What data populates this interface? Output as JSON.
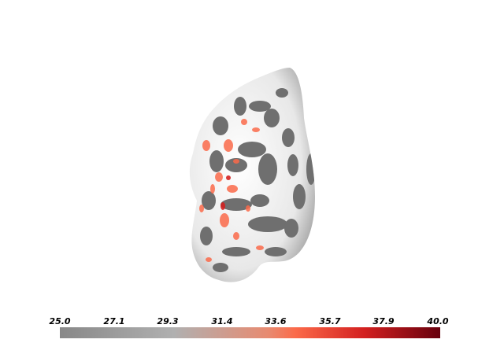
{
  "colorbar": {
    "ticks": [
      "25.0",
      "27.1",
      "29.3",
      "31.4",
      "33.6",
      "35.7",
      "37.9",
      "40.0"
    ],
    "min": 25.0,
    "max": 40.0,
    "colors": [
      "#888888",
      "#b0b0b0",
      "#e88a70",
      "#fb6a4a",
      "#d32020",
      "#67000d"
    ]
  },
  "surface": {
    "base_color": "#f0f0f0",
    "sulci_color": "#666666",
    "overlay_color": "#fb6a4a"
  }
}
